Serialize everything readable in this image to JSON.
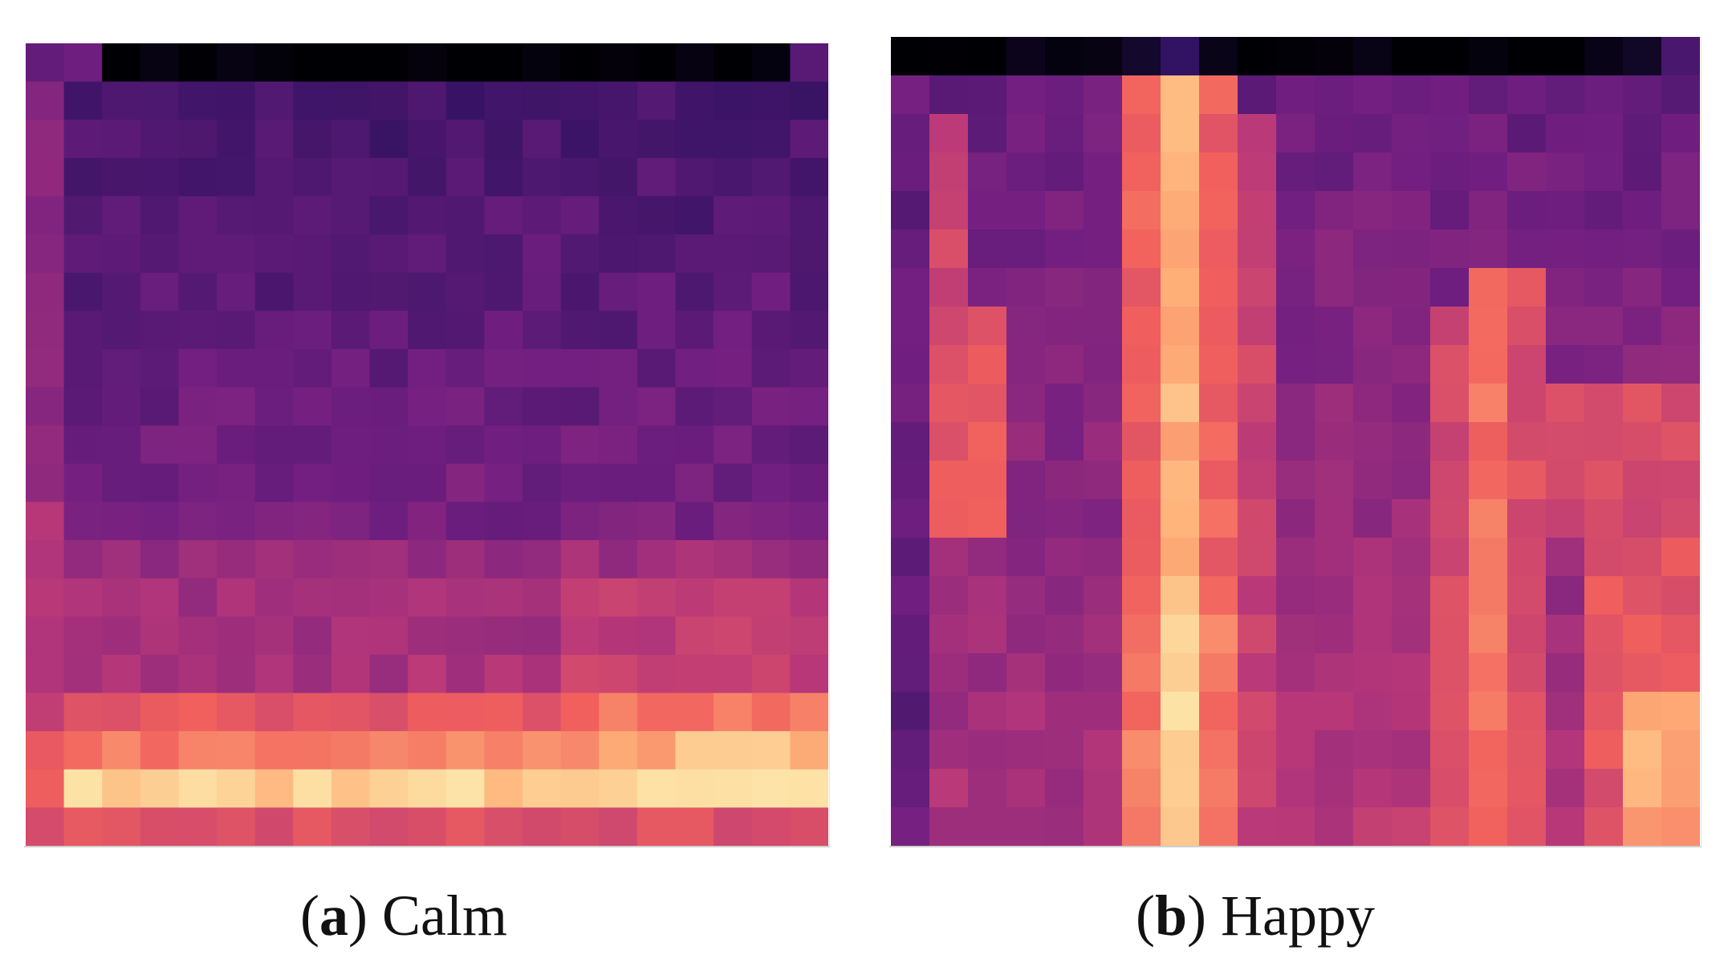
{
  "figure": {
    "panels": [
      {
        "id": "a",
        "letter": "a",
        "label": "Calm",
        "cols": 21,
        "rows": 21
      },
      {
        "id": "b",
        "letter": "b",
        "label": "Happy",
        "cols": 21,
        "rows": 21
      }
    ],
    "colormap": {
      "name": "magma",
      "stops": [
        "#000004",
        "#2c115f",
        "#721f81",
        "#b73779",
        "#f1605d",
        "#feb078",
        "#fcfdbf"
      ]
    }
  }
}
